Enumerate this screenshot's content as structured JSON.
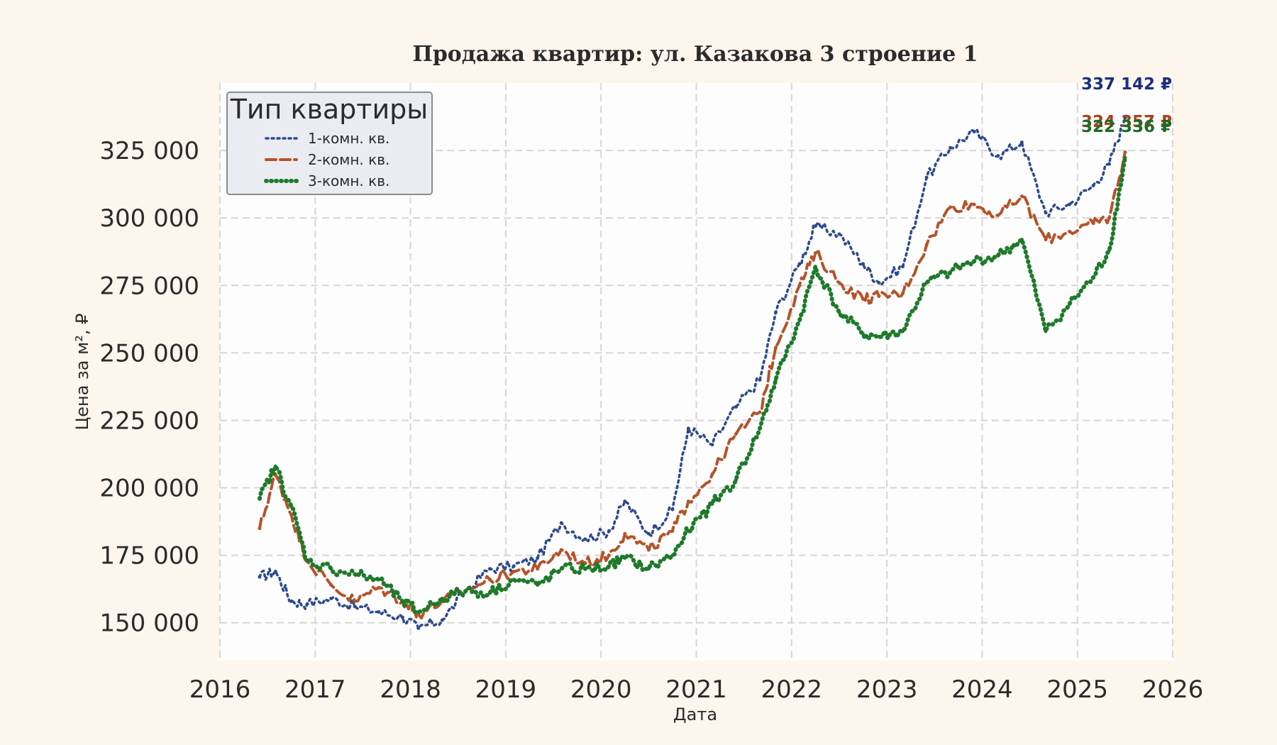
{
  "chart_data": {
    "type": "line",
    "title": "Продажа квартир: ул. Казакова 3 строение 1",
    "xlabel": "Дата",
    "ylabel": "Цена за м², ₽",
    "x_ticks": [
      "2016",
      "2017",
      "2018",
      "2019",
      "2020",
      "2021",
      "2022",
      "2023",
      "2024",
      "2025",
      "2026"
    ],
    "y_ticks": [
      "150 000",
      "175 000",
      "200 000",
      "225 000",
      "250 000",
      "275 000",
      "300 000",
      "325 000"
    ],
    "xlim": [
      "2016-01-01",
      "2026-01-01"
    ],
    "ylim": [
      136000,
      350000
    ],
    "grid": true,
    "legend": {
      "title": "Тип квартиры",
      "position": "top-left"
    },
    "series": [
      {
        "name": "1-комн. кв.",
        "color": "#2e4a8c",
        "style": "dotted",
        "end_label": "337 142 ₽",
        "label_color": "#1a2f80",
        "points": [
          [
            "2016-06",
            167000
          ],
          [
            "2016-08",
            169000
          ],
          [
            "2016-10",
            158000
          ],
          [
            "2016-12",
            157000
          ],
          [
            "2017-03",
            159000
          ],
          [
            "2017-06",
            156000
          ],
          [
            "2017-09",
            154000
          ],
          [
            "2017-12",
            152000
          ],
          [
            "2018-02",
            148000
          ],
          [
            "2018-05",
            151000
          ],
          [
            "2018-08",
            162000
          ],
          [
            "2018-11",
            170000
          ],
          [
            "2019-02",
            171000
          ],
          [
            "2019-05",
            174000
          ],
          [
            "2019-08",
            187000
          ],
          [
            "2019-11",
            181000
          ],
          [
            "2020-02",
            184000
          ],
          [
            "2020-04",
            195000
          ],
          [
            "2020-07",
            183000
          ],
          [
            "2020-10",
            192000
          ],
          [
            "2020-12",
            222000
          ],
          [
            "2021-03",
            216000
          ],
          [
            "2021-06",
            230000
          ],
          [
            "2021-09",
            240000
          ],
          [
            "2021-11",
            265000
          ],
          [
            "2022-02",
            283000
          ],
          [
            "2022-04",
            297000
          ],
          [
            "2022-07",
            294000
          ],
          [
            "2022-10",
            283000
          ],
          [
            "2022-12",
            276000
          ],
          [
            "2023-03",
            282000
          ],
          [
            "2023-06",
            315000
          ],
          [
            "2023-09",
            326000
          ],
          [
            "2023-12",
            332000
          ],
          [
            "2024-03",
            323000
          ],
          [
            "2024-06",
            328000
          ],
          [
            "2024-09",
            302000
          ],
          [
            "2024-12",
            305000
          ],
          [
            "2025-03",
            312000
          ],
          [
            "2025-05",
            320000
          ],
          [
            "2025-07",
            337142
          ]
        ]
      },
      {
        "name": "2-комн. кв.",
        "color": "#b5532a",
        "style": "dashed",
        "end_label": "324 357 ₽",
        "label_color": "#a8431c",
        "points": [
          [
            "2016-06",
            185000
          ],
          [
            "2016-08",
            205000
          ],
          [
            "2016-10",
            190000
          ],
          [
            "2016-12",
            173000
          ],
          [
            "2017-03",
            164000
          ],
          [
            "2017-06",
            158000
          ],
          [
            "2017-09",
            163000
          ],
          [
            "2017-12",
            158000
          ],
          [
            "2018-02",
            153000
          ],
          [
            "2018-05",
            158000
          ],
          [
            "2018-08",
            162000
          ],
          [
            "2018-11",
            166000
          ],
          [
            "2019-02",
            169000
          ],
          [
            "2019-05",
            170000
          ],
          [
            "2019-08",
            177000
          ],
          [
            "2019-11",
            172000
          ],
          [
            "2020-02",
            175000
          ],
          [
            "2020-04",
            183000
          ],
          [
            "2020-07",
            177000
          ],
          [
            "2020-10",
            184000
          ],
          [
            "2020-12",
            195000
          ],
          [
            "2021-03",
            205000
          ],
          [
            "2021-06",
            220000
          ],
          [
            "2021-09",
            228000
          ],
          [
            "2021-11",
            252000
          ],
          [
            "2022-02",
            275000
          ],
          [
            "2022-04",
            287000
          ],
          [
            "2022-07",
            276000
          ],
          [
            "2022-10",
            270000
          ],
          [
            "2022-12",
            271000
          ],
          [
            "2023-03",
            272000
          ],
          [
            "2023-06",
            290000
          ],
          [
            "2023-09",
            304000
          ],
          [
            "2023-12",
            305000
          ],
          [
            "2024-03",
            301000
          ],
          [
            "2024-06",
            308000
          ],
          [
            "2024-09",
            292000
          ],
          [
            "2024-12",
            295000
          ],
          [
            "2025-03",
            298000
          ],
          [
            "2025-05",
            300000
          ],
          [
            "2025-07",
            324357
          ]
        ]
      },
      {
        "name": "3-комн. кв.",
        "color": "#1e7a2a",
        "style": "dot-line",
        "end_label": "322 336 ₽",
        "label_color": "#1b6b25",
        "points": [
          [
            "2016-06",
            196000
          ],
          [
            "2016-08",
            208000
          ],
          [
            "2016-10",
            193000
          ],
          [
            "2016-12",
            173000
          ],
          [
            "2017-03",
            170000
          ],
          [
            "2017-06",
            168000
          ],
          [
            "2017-09",
            166000
          ],
          [
            "2017-12",
            158000
          ],
          [
            "2018-02",
            154000
          ],
          [
            "2018-05",
            159000
          ],
          [
            "2018-08",
            162000
          ],
          [
            "2018-11",
            161000
          ],
          [
            "2019-02",
            166000
          ],
          [
            "2019-05",
            164000
          ],
          [
            "2019-08",
            170000
          ],
          [
            "2019-11",
            170000
          ],
          [
            "2020-02",
            171000
          ],
          [
            "2020-04",
            174000
          ],
          [
            "2020-07",
            170000
          ],
          [
            "2020-10",
            175000
          ],
          [
            "2020-12",
            184000
          ],
          [
            "2021-03",
            194000
          ],
          [
            "2021-06",
            203000
          ],
          [
            "2021-09",
            222000
          ],
          [
            "2021-11",
            240000
          ],
          [
            "2022-02",
            262000
          ],
          [
            "2022-04",
            282000
          ],
          [
            "2022-07",
            265000
          ],
          [
            "2022-10",
            257000
          ],
          [
            "2022-12",
            256000
          ],
          [
            "2023-03",
            258000
          ],
          [
            "2023-06",
            276000
          ],
          [
            "2023-09",
            280000
          ],
          [
            "2023-12",
            284000
          ],
          [
            "2024-03",
            286000
          ],
          [
            "2024-06",
            292000
          ],
          [
            "2024-09",
            258000
          ],
          [
            "2024-12",
            268000
          ],
          [
            "2025-03",
            278000
          ],
          [
            "2025-05",
            288000
          ],
          [
            "2025-07",
            322336
          ]
        ]
      }
    ]
  }
}
